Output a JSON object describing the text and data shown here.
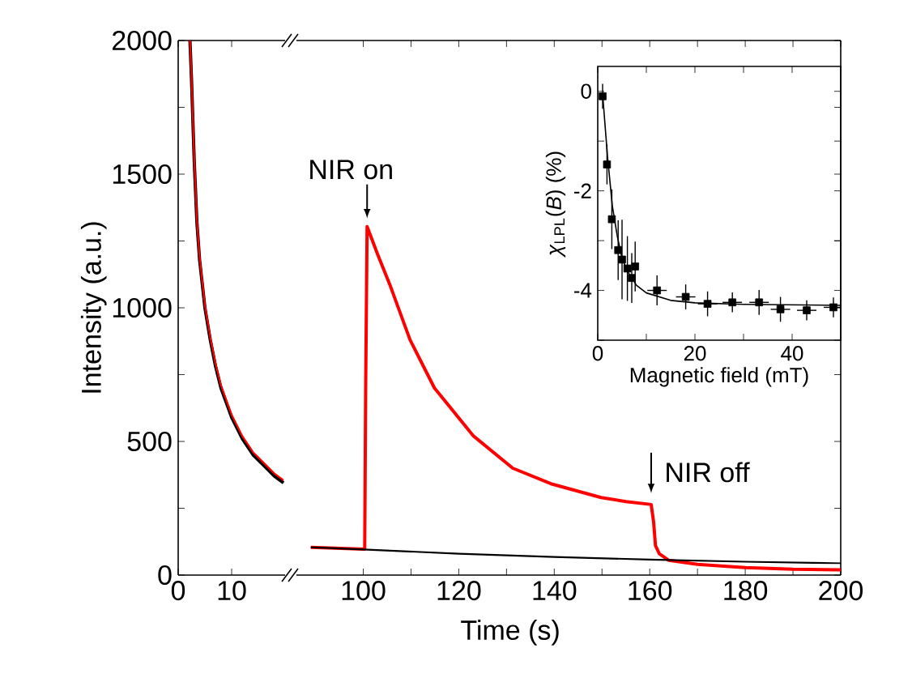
{
  "chart_data": [
    {
      "type": "line",
      "xlim": [
        0,
        20
      ],
      "xticks": [
        0,
        10
      ],
      "ylim": [
        0,
        2000
      ],
      "yticks": [
        0,
        {
          "value": 250,
          "label": null
        },
        500,
        {
          "value": 750,
          "label": null
        },
        1000,
        {
          "value": 1250,
          "label": null
        },
        1500,
        {
          "value": 1750,
          "label": null
        },
        2000
      ],
      "ylabel": "Intensity (a.u.)",
      "series": [
        {
          "color": "#000000",
          "x": [
            2.2,
            2.5,
            3,
            3.5,
            4,
            5,
            6,
            7,
            8,
            10,
            12,
            14,
            16,
            18,
            19.7
          ],
          "values": [
            2000,
            1850,
            1550,
            1320,
            1180,
            1000,
            880,
            780,
            700,
            590,
            510,
            450,
            410,
            370,
            345
          ]
        },
        {
          "color": "#ff0000",
          "x": [
            2.2,
            2.5,
            3,
            3.5,
            4,
            5,
            6,
            7,
            8,
            10,
            12,
            14,
            16,
            18,
            19.7
          ],
          "values": [
            2000,
            1860,
            1560,
            1330,
            1190,
            1010,
            890,
            790,
            710,
            600,
            520,
            460,
            420,
            380,
            355
          ]
        }
      ]
    },
    {
      "type": "line",
      "xlim": [
        86,
        200
      ],
      "xticks": [
        100,
        {
          "value": 110,
          "label": null
        },
        120,
        {
          "value": 130,
          "label": null
        },
        140,
        {
          "value": 150,
          "label": null
        },
        160,
        {
          "value": 170,
          "label": null
        },
        180,
        {
          "value": 190,
          "label": null
        },
        200
      ],
      "ylim": [
        0,
        2000
      ],
      "yticks": [
        0,
        {
          "value": 250,
          "label": null
        },
        500,
        {
          "value": 750,
          "label": null
        },
        1000,
        {
          "value": 1250,
          "label": null
        },
        1500,
        {
          "value": 1750,
          "label": null
        },
        2000
      ],
      "tick_labels": "x",
      "xlabel": "Time (s)",
      "annotations": [
        {
          "text": "NIR on",
          "x": 100.8,
          "y": 1304
        },
        {
          "text": "NIR off",
          "x": 160.3,
          "y": 264
        }
      ],
      "series": [
        {
          "color": "#ff0000",
          "x": [
            89,
            100.3,
            100.5,
            100.8,
            103,
            105.7,
            109.8,
            114.9,
            123.1,
            131.3,
            139.6,
            149.8,
            155,
            160.3,
            160.8,
            161.2,
            162,
            164,
            170,
            180,
            190,
            200
          ],
          "values": [
            104,
            97,
            700,
            1304,
            1200,
            1080,
            880,
            700,
            520,
            400,
            340,
            290,
            275,
            264,
            200,
            110,
            80,
            55,
            40,
            28,
            22,
            20
          ]
        },
        {
          "color": "#000000",
          "x": [
            89,
            100,
            120,
            140,
            160,
            180,
            200
          ],
          "values": [
            104,
            96,
            80,
            68,
            58,
            50,
            44
          ]
        }
      ]
    },
    {
      "type": "scatter",
      "xlim": [
        0,
        50
      ],
      "xticks": [
        0,
        {
          "value": 10,
          "label": null
        },
        20,
        {
          "value": 30,
          "label": null
        },
        40
      ],
      "ylim": [
        -5,
        0.5
      ],
      "yticks": [
        {
          "value": -5,
          "label": null
        },
        -4,
        {
          "value": -3,
          "label": null
        },
        -2,
        {
          "value": -1,
          "label": null
        },
        0
      ],
      "xlabel": "Magnetic field (mT)",
      "ylabel": "*χ*$_{LPL}$(*B*) (%)",
      "series": [
        {
          "type": "scatter",
          "marker": "square",
          "color": "#000000",
          "x": [
            1.0,
            1.9,
            2.9,
            4.2,
            5.0,
            6.1,
            7.0,
            7.7,
            12.2,
            18.1,
            22.6,
            27.7,
            33.2,
            37.6,
            43.0,
            48.5
          ],
          "values": [
            -0.1,
            -1.47,
            -2.57,
            -3.19,
            -3.38,
            -3.56,
            -3.75,
            -3.52,
            -4.0,
            -4.13,
            -4.27,
            -4.24,
            -4.24,
            -4.38,
            -4.4,
            -4.34
          ],
          "errors": [
            0.25,
            0.4,
            0.6,
            0.6,
            0.8,
            0.65,
            0.5,
            0.5,
            0.3,
            0.25,
            0.25,
            0.2,
            0.25,
            0.25,
            0.2,
            0.2
          ],
          "xerrors": [
            null,
            null,
            null,
            null,
            null,
            null,
            null,
            null,
            2,
            2,
            2,
            2,
            2,
            2,
            2,
            2
          ]
        },
        {
          "type": "line",
          "color": "#000000",
          "x": [
            1,
            2,
            3,
            4,
            5,
            6,
            8,
            10,
            15,
            20,
            30,
            50
          ],
          "values": [
            -0.05,
            -1.3,
            -2.3,
            -2.9,
            -3.35,
            -3.6,
            -3.9,
            -4.05,
            -4.2,
            -4.25,
            -4.28,
            -4.3
          ]
        }
      ]
    }
  ]
}
